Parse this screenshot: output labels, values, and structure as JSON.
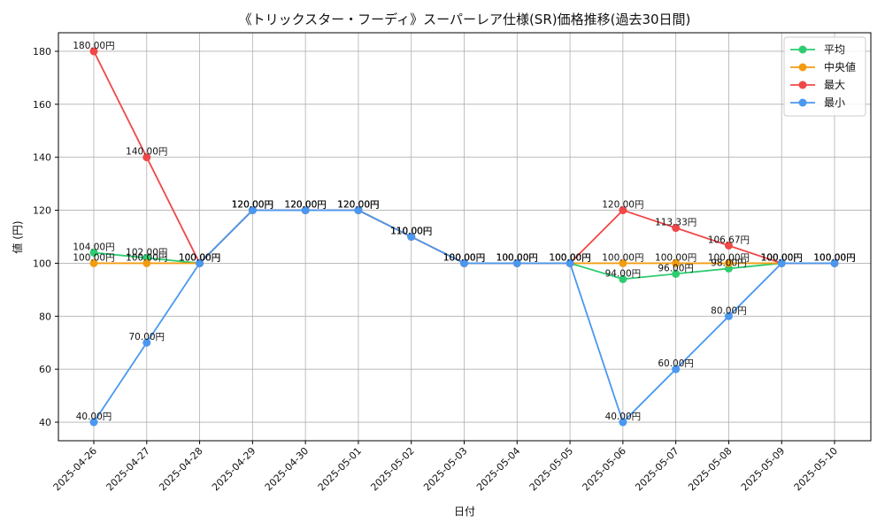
{
  "chart_data": {
    "type": "line",
    "title": "《トリックスター・フーディ》スーパーレア仕様(SR)価格推移(過去30日間)",
    "xlabel": "日付",
    "ylabel": "値 (円)",
    "categories": [
      "2025-04-26",
      "2025-04-27",
      "2025-04-28",
      "2025-04-29",
      "2025-04-30",
      "2025-05-01",
      "2025-05-02",
      "2025-05-03",
      "2025-05-04",
      "2025-05-05",
      "2025-05-06",
      "2025-05-07",
      "2025-05-08",
      "2025-05-09",
      "2025-05-10"
    ],
    "ylim": [
      33,
      187
    ],
    "yticks": [
      40,
      60,
      80,
      100,
      120,
      140,
      160,
      180
    ],
    "grid": true,
    "legend_position": "top-right",
    "label_suffix": "円",
    "series": [
      {
        "name": "平均",
        "color": "#2ecc71",
        "values": [
          104.0,
          102.0,
          100.0,
          120.0,
          120.0,
          120.0,
          110.0,
          100.0,
          100.0,
          100.0,
          94.0,
          96.0,
          98.0,
          100.0,
          100.0
        ]
      },
      {
        "name": "中央値",
        "color": "#f39c12",
        "values": [
          100.0,
          100.0,
          100.0,
          120.0,
          120.0,
          120.0,
          110.0,
          100.0,
          100.0,
          100.0,
          100.0,
          100.0,
          100.0,
          100.0,
          100.0
        ]
      },
      {
        "name": "最大",
        "color": "#f04848",
        "values": [
          180.0,
          140.0,
          100.0,
          120.0,
          120.0,
          120.0,
          110.0,
          100.0,
          100.0,
          100.0,
          120.0,
          113.33,
          106.67,
          100.0,
          100.0
        ]
      },
      {
        "name": "最小",
        "color": "#4a98f0",
        "values": [
          40.0,
          70.0,
          100.0,
          120.0,
          120.0,
          120.0,
          110.0,
          100.0,
          100.0,
          100.0,
          40.0,
          60.0,
          80.0,
          100.0,
          100.0
        ]
      }
    ]
  }
}
